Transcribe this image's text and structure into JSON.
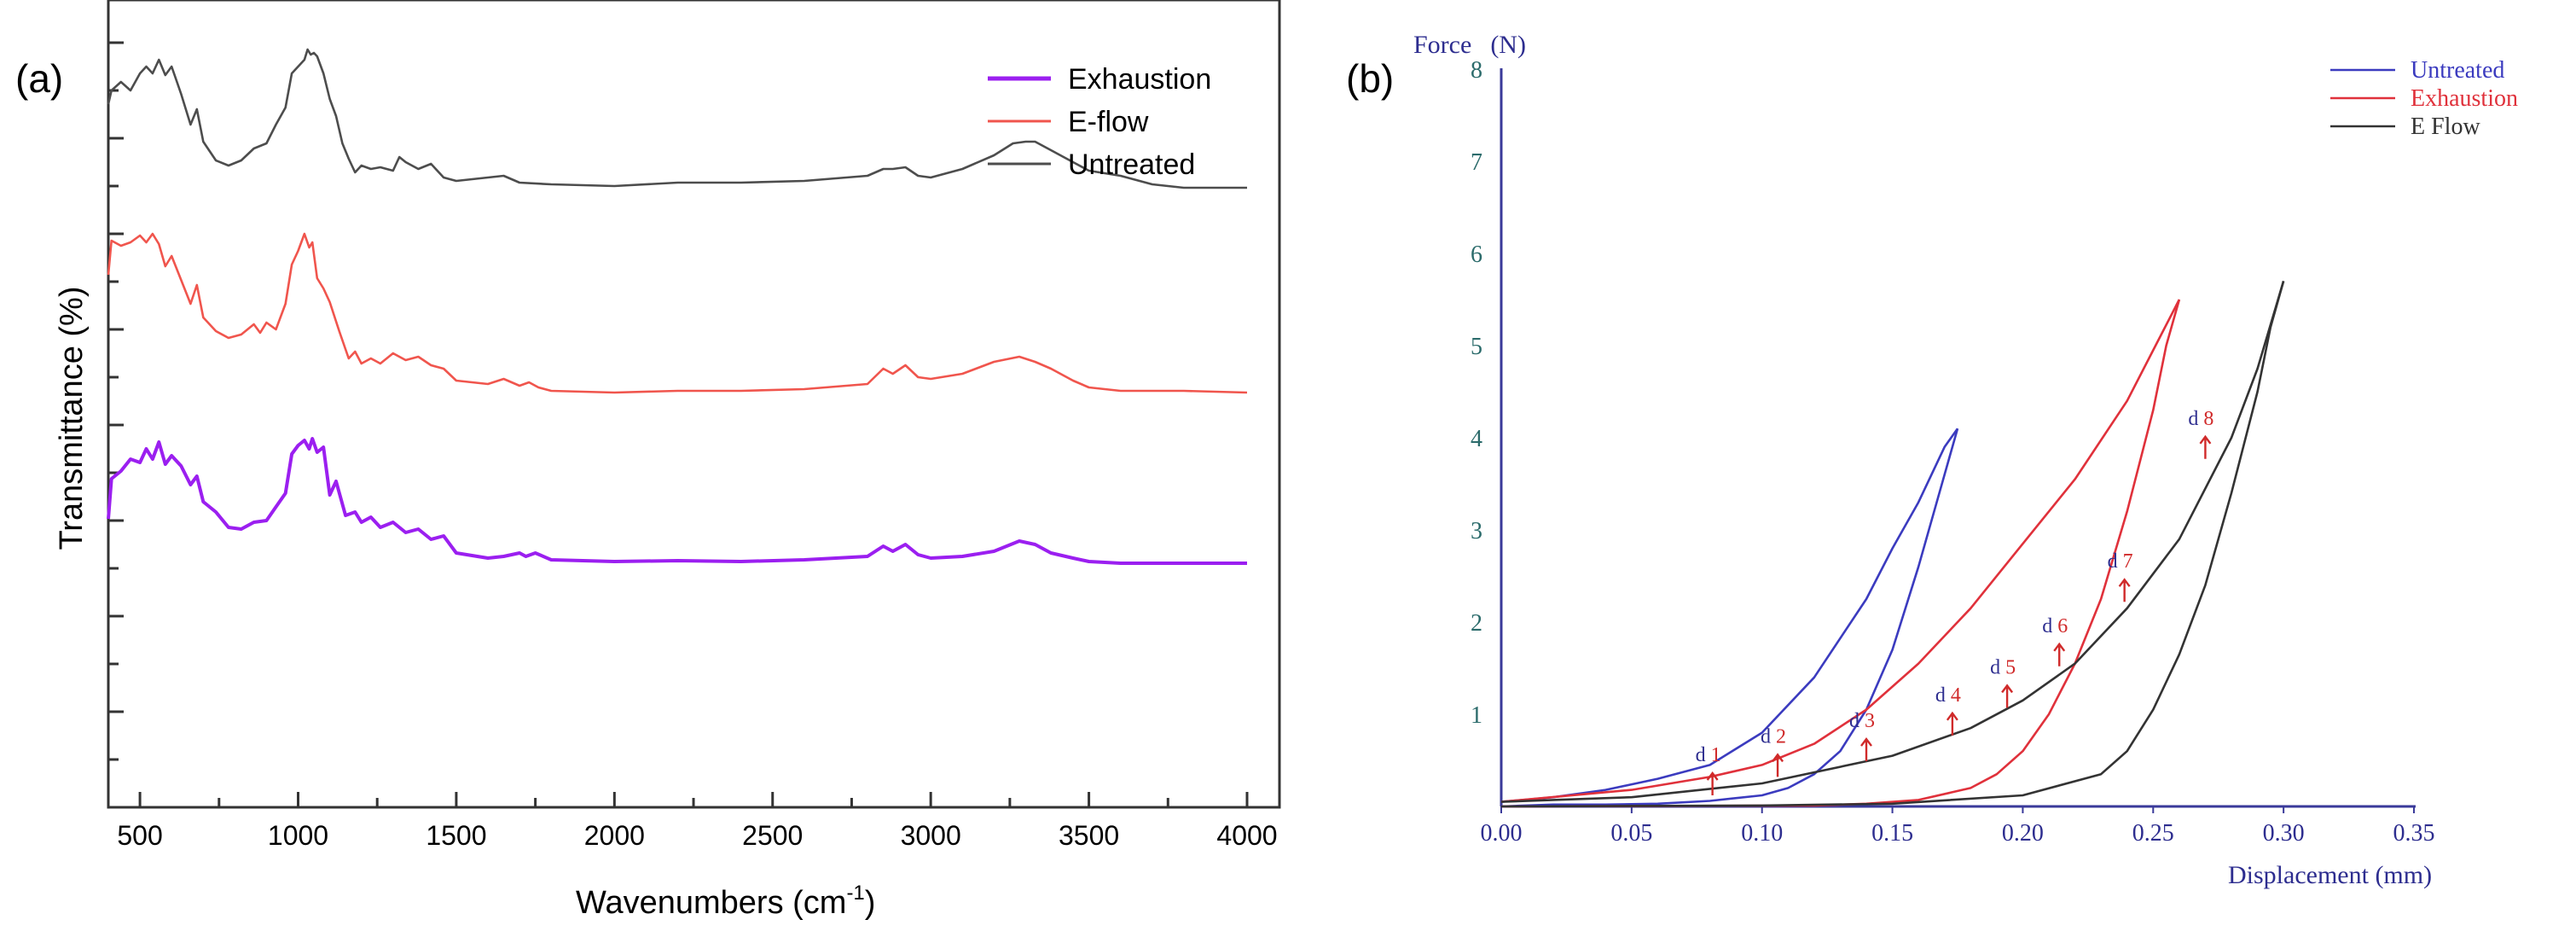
{
  "chart_data": [
    {
      "panel_label": "(a)",
      "type": "line",
      "xlabel_main": "Wavenumbers (cm",
      "xlabel_sup": "-1",
      "xlabel_close": ")",
      "ylabel": "Transmittance (%)",
      "xlim": [
        400,
        4000
      ],
      "x_ticks": [
        "500",
        "1000",
        "1500",
        "2000",
        "2500",
        "3000",
        "3500",
        "4000"
      ],
      "legend_position": "top-right",
      "series": [
        {
          "name": "Exhaustion",
          "color": "#9b1ff0",
          "x": [
            400,
            410,
            440,
            470,
            500,
            520,
            540,
            560,
            580,
            600,
            630,
            660,
            680,
            700,
            740,
            780,
            820,
            860,
            900,
            930,
            960,
            980,
            1000,
            1020,
            1035,
            1045,
            1060,
            1080,
            1100,
            1120,
            1150,
            1180,
            1200,
            1230,
            1260,
            1300,
            1340,
            1380,
            1420,
            1460,
            1500,
            1600,
            1650,
            1700,
            1720,
            1750,
            1800,
            2000,
            2200,
            2400,
            2600,
            2800,
            2850,
            2880,
            2920,
            2960,
            3000,
            3100,
            3200,
            3280,
            3330,
            3380,
            3450,
            3500,
            3600,
            3700,
            3800,
            4000
          ],
          "y": [
            67.6,
            77.0,
            78.8,
            81.6,
            80.8,
            84.0,
            81.6,
            85.6,
            80.4,
            82.4,
            80.0,
            75.6,
            77.6,
            71.6,
            69.2,
            65.6,
            65.2,
            66.8,
            67.2,
            70.4,
            73.6,
            82.8,
            84.8,
            86.0,
            84.0,
            86.4,
            83.2,
            84.4,
            73.2,
            76.4,
            68.4,
            69.2,
            66.8,
            68.0,
            65.6,
            66.8,
            64.4,
            65.2,
            62.8,
            63.6,
            59.6,
            58.4,
            58.8,
            59.6,
            58.8,
            59.6,
            58.0,
            57.6,
            57.8,
            57.6,
            58.0,
            58.8,
            61.2,
            60.0,
            61.6,
            59.2,
            58.4,
            58.8,
            60.0,
            62.4,
            61.6,
            59.6,
            58.4,
            57.6,
            57.2,
            57.2,
            57.2,
            57.2
          ]
        },
        {
          "name": "E-flow",
          "color": "#f0554d",
          "x": [
            400,
            410,
            440,
            470,
            500,
            520,
            540,
            560,
            580,
            600,
            630,
            660,
            680,
            700,
            740,
            780,
            820,
            860,
            880,
            900,
            930,
            960,
            980,
            1000,
            1020,
            1035,
            1045,
            1060,
            1080,
            1100,
            1130,
            1160,
            1180,
            1200,
            1230,
            1260,
            1300,
            1340,
            1380,
            1420,
            1460,
            1500,
            1600,
            1650,
            1700,
            1730,
            1760,
            1800,
            2000,
            2200,
            2400,
            2600,
            2800,
            2850,
            2880,
            2920,
            2960,
            3000,
            3100,
            3200,
            3280,
            3330,
            3380,
            3450,
            3500,
            3600,
            3700,
            3800,
            4000
          ],
          "y": [
            124.8,
            132.8,
            131.6,
            132.4,
            134.0,
            132.4,
            134.4,
            132.0,
            126.8,
            129.2,
            123.6,
            118.0,
            122.4,
            114.8,
            111.6,
            110.0,
            110.8,
            113.2,
            111.2,
            113.6,
            112.0,
            118.0,
            127.2,
            130.4,
            134.4,
            131.2,
            132.4,
            124.0,
            121.6,
            118.4,
            111.6,
            105.2,
            106.8,
            104.0,
            105.2,
            104.0,
            106.4,
            104.8,
            105.6,
            103.6,
            102.8,
            100.0,
            99.2,
            100.4,
            98.8,
            99.6,
            98.4,
            97.6,
            97.2,
            97.6,
            97.6,
            98.0,
            99.2,
            102.8,
            101.6,
            103.6,
            100.8,
            100.4,
            101.6,
            104.4,
            105.6,
            104.4,
            102.8,
            100.0,
            98.4,
            97.6,
            97.6,
            97.6,
            97.2
          ]
        },
        {
          "name": "Untreated",
          "color": "#4d4d4d",
          "x": [
            400,
            410,
            440,
            470,
            500,
            520,
            540,
            560,
            580,
            600,
            630,
            660,
            680,
            700,
            740,
            780,
            820,
            860,
            900,
            930,
            960,
            980,
            1000,
            1020,
            1030,
            1040,
            1050,
            1060,
            1080,
            1100,
            1120,
            1140,
            1160,
            1180,
            1200,
            1230,
            1260,
            1300,
            1320,
            1340,
            1380,
            1420,
            1460,
            1500,
            1600,
            1650,
            1700,
            1800,
            2000,
            2200,
            2400,
            2600,
            2800,
            2850,
            2880,
            2920,
            2960,
            3000,
            3100,
            3200,
            3260,
            3300,
            3330,
            3380,
            3450,
            3500,
            3600,
            3700,
            3800,
            4000
          ],
          "y": [
            164.8,
            168.0,
            170.0,
            168.0,
            172.0,
            173.6,
            172.0,
            175.2,
            171.6,
            173.6,
            167.2,
            160.0,
            163.6,
            156.0,
            151.6,
            150.4,
            151.6,
            154.4,
            155.6,
            160.0,
            164.0,
            172.0,
            173.6,
            175.2,
            177.6,
            176.4,
            176.8,
            176.0,
            172.0,
            166.0,
            162.0,
            155.6,
            152.0,
            148.8,
            150.4,
            149.6,
            150.0,
            149.2,
            152.4,
            151.2,
            149.6,
            150.8,
            147.6,
            146.8,
            147.6,
            148.0,
            146.4,
            146.0,
            145.6,
            146.4,
            146.4,
            146.8,
            148.0,
            149.6,
            149.6,
            150.0,
            148.0,
            147.6,
            149.6,
            152.8,
            155.6,
            156.0,
            156.0,
            154.0,
            151.2,
            149.2,
            148.0,
            146.0,
            145.2,
            145.2
          ]
        }
      ]
    },
    {
      "panel_label": "(b)",
      "type": "line",
      "ylabel_force": "Force",
      "ylabel_unit": "(N)",
      "xlabel": "Displacement (mm)",
      "xlim": [
        0,
        0.35
      ],
      "ylim": [
        0,
        8
      ],
      "x_ticks": [
        "0.00",
        "0.05",
        "0.10",
        "0.15",
        "0.20",
        "0.25",
        "0.30",
        "0.35"
      ],
      "y_ticks": [
        "1",
        "2",
        "3",
        "4",
        "5",
        "6",
        "7",
        "8"
      ],
      "legend_position": "top-right",
      "series": [
        {
          "name": "Untreated",
          "color": "#3b3bbf",
          "loading": {
            "x": [
              0.0,
              0.02,
              0.04,
              0.06,
              0.08,
              0.1,
              0.12,
              0.14,
              0.15,
              0.16,
              0.17,
              0.175
            ],
            "y": [
              0.05,
              0.1,
              0.18,
              0.3,
              0.45,
              0.8,
              1.4,
              2.25,
              2.8,
              3.3,
              3.9,
              4.1
            ]
          },
          "unloading": {
            "x": [
              0.175,
              0.17,
              0.16,
              0.15,
              0.14,
              0.13,
              0.12,
              0.11,
              0.1,
              0.08,
              0.06,
              0.04,
              0.02,
              0.0
            ],
            "y": [
              4.1,
              3.6,
              2.6,
              1.7,
              1.05,
              0.6,
              0.35,
              0.2,
              0.12,
              0.06,
              0.03,
              0.02,
              0.02,
              0.0
            ]
          }
        },
        {
          "name": "Exhaustion",
          "color": "#e0313b",
          "loading": {
            "x": [
              0.0,
              0.05,
              0.08,
              0.1,
              0.12,
              0.14,
              0.16,
              0.18,
              0.2,
              0.22,
              0.24,
              0.25,
              0.26
            ],
            "y": [
              0.05,
              0.18,
              0.32,
              0.45,
              0.68,
              1.05,
              1.55,
              2.15,
              2.85,
              3.55,
              4.4,
              4.95,
              5.5
            ]
          },
          "unloading": {
            "x": [
              0.26,
              0.255,
              0.25,
              0.24,
              0.23,
              0.22,
              0.21,
              0.2,
              0.19,
              0.18,
              0.16,
              0.14,
              0.12,
              0.0
            ],
            "y": [
              5.5,
              5.0,
              4.3,
              3.2,
              2.25,
              1.55,
              1.0,
              0.6,
              0.35,
              0.2,
              0.07,
              0.03,
              0.01,
              0.0
            ]
          }
        },
        {
          "name": "E Flow",
          "color": "#333333",
          "loading": {
            "x": [
              0.0,
              0.05,
              0.1,
              0.15,
              0.18,
              0.2,
              0.22,
              0.24,
              0.26,
              0.28,
              0.29,
              0.3
            ],
            "y": [
              0.05,
              0.1,
              0.25,
              0.55,
              0.85,
              1.15,
              1.55,
              2.15,
              2.9,
              4.0,
              4.75,
              5.7
            ]
          },
          "unloading": {
            "x": [
              0.3,
              0.295,
              0.29,
              0.28,
              0.27,
              0.26,
              0.25,
              0.24,
              0.23,
              0.2,
              0.15,
              0.1,
              0.0
            ],
            "y": [
              5.7,
              5.2,
              4.5,
              3.4,
              2.4,
              1.65,
              1.05,
              0.6,
              0.35,
              0.12,
              0.03,
              0.01,
              0.0
            ]
          }
        }
      ],
      "annotations": [
        {
          "label": "d 1",
          "x": 0.081,
          "y": 0.25
        },
        {
          "label": "d 2",
          "x": 0.106,
          "y": 0.45
        },
        {
          "label": "d 3",
          "x": 0.14,
          "y": 0.62
        },
        {
          "label": "d 4",
          "x": 0.173,
          "y": 0.9
        },
        {
          "label": "d 5",
          "x": 0.194,
          "y": 1.2
        },
        {
          "label": "d 6",
          "x": 0.214,
          "y": 1.65
        },
        {
          "label": "d 7",
          "x": 0.239,
          "y": 2.35
        },
        {
          "label": "d 8",
          "x": 0.27,
          "y": 3.9
        }
      ]
    }
  ]
}
